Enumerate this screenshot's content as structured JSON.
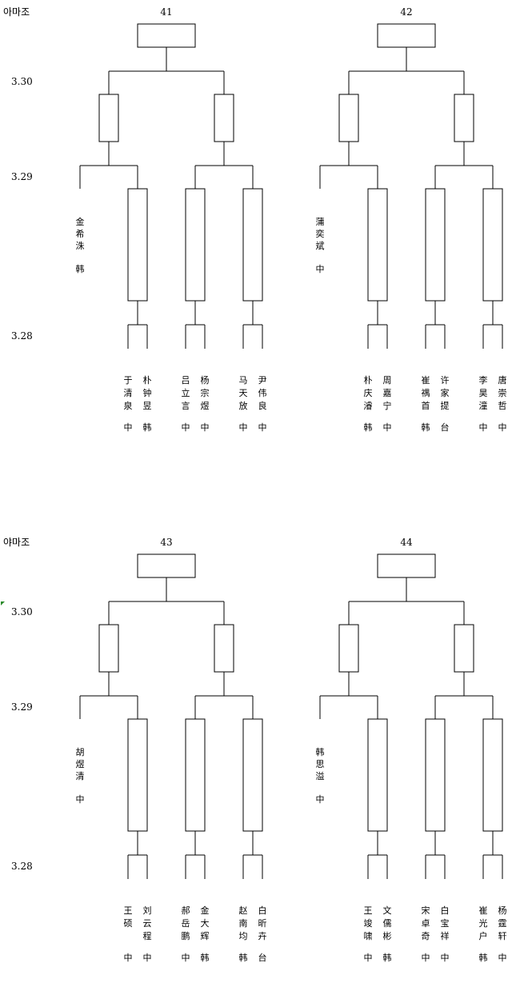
{
  "pages": [
    {
      "group_label": "아마조",
      "dates": [
        "3.30",
        "3.29",
        "3.28"
      ],
      "brackets": [
        {
          "match_no": "41",
          "seed": {
            "name": "金希洙",
            "country": "韩"
          },
          "players": [
            {
              "name": "于清泉",
              "country": "中"
            },
            {
              "name": "朴钟昱",
              "country": "韩"
            },
            {
              "name": "吕立言",
              "country": "中"
            },
            {
              "name": "杨宗煜",
              "country": "中"
            },
            {
              "name": "马天放",
              "country": "中"
            },
            {
              "name": "尹伟良",
              "country": "中"
            }
          ]
        },
        {
          "match_no": "42",
          "seed": {
            "name": "蒲奕斌",
            "country": "中"
          },
          "players": [
            {
              "name": "朴庆濬",
              "country": "韩"
            },
            {
              "name": "周嘉宁",
              "country": "中"
            },
            {
              "name": "崔禑首",
              "country": "韩"
            },
            {
              "name": "许家提",
              "country": "台"
            },
            {
              "name": "李昊潼",
              "country": "中"
            },
            {
              "name": "唐崇哲",
              "country": "中"
            }
          ]
        }
      ]
    },
    {
      "group_label": "야마조",
      "dates": [
        "3.30",
        "3.29",
        "3.28"
      ],
      "brackets": [
        {
          "match_no": "43",
          "seed": {
            "name": "胡煜清",
            "country": "中"
          },
          "players": [
            {
              "name": "王硕",
              "country": "中"
            },
            {
              "name": "刘云程",
              "country": "中"
            },
            {
              "name": "郝岳鹏",
              "country": "中"
            },
            {
              "name": "金大辉",
              "country": "韩"
            },
            {
              "name": "赵南均",
              "country": "韩"
            },
            {
              "name": "白昕卉",
              "country": "台"
            }
          ]
        },
        {
          "match_no": "44",
          "seed": {
            "name": "韩思溢",
            "country": "中"
          },
          "players": [
            {
              "name": "王竣啸",
              "country": "中"
            },
            {
              "name": "文儒彬",
              "country": "韩"
            },
            {
              "name": "宋卓奇",
              "country": "中"
            },
            {
              "name": "白宝祥",
              "country": "中"
            },
            {
              "name": "崔光户",
              "country": "韩"
            },
            {
              "name": "杨霆轩",
              "country": "中"
            }
          ]
        }
      ]
    }
  ]
}
